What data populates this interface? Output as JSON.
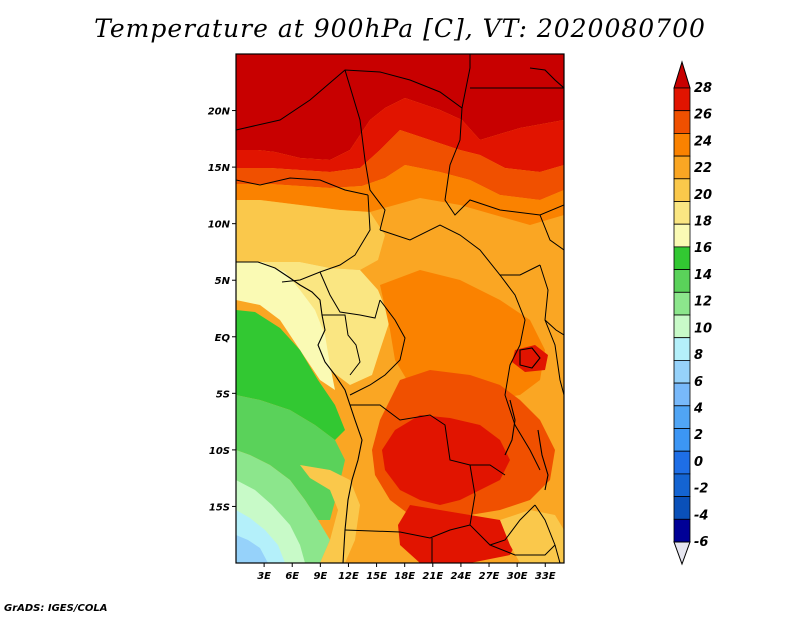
{
  "title": "Temperature at 900hPa [C], VT: 2020080700",
  "footer": "GrADS: IGES/COLA",
  "map": {
    "lon_range": [
      0,
      35
    ],
    "lat_range": [
      -20,
      25
    ],
    "lat_ticks": [
      {
        "label": "20N",
        "value": 20
      },
      {
        "label": "15N",
        "value": 15
      },
      {
        "label": "10N",
        "value": 10
      },
      {
        "label": "5N",
        "value": 5
      },
      {
        "label": "EQ",
        "value": 0
      },
      {
        "label": "5S",
        "value": -5
      },
      {
        "label": "10S",
        "value": -10
      },
      {
        "label": "15S",
        "value": -15
      }
    ],
    "lon_ticks": [
      {
        "label": "3E",
        "value": 3
      },
      {
        "label": "6E",
        "value": 6
      },
      {
        "label": "9E",
        "value": 9
      },
      {
        "label": "12E",
        "value": 12
      },
      {
        "label": "15E",
        "value": 15
      },
      {
        "label": "18E",
        "value": 18
      },
      {
        "label": "21E",
        "value": 21
      },
      {
        "label": "24E",
        "value": 24
      },
      {
        "label": "27E",
        "value": 27
      },
      {
        "label": "30E",
        "value": 30
      },
      {
        "label": "33E",
        "value": 33
      }
    ]
  },
  "colorbar": {
    "labels": [
      "28",
      "26",
      "24",
      "22",
      "20",
      "18",
      "16",
      "14",
      "12",
      "10",
      "8",
      "6",
      "4",
      "2",
      "0",
      "-2",
      "-4",
      "-6"
    ],
    "colors": [
      "#c80000",
      "#e11400",
      "#f05000",
      "#fa8200",
      "#faa623",
      "#fac84b",
      "#fae682",
      "#fafab4",
      "#32c832",
      "#5ad25a",
      "#8ce68c",
      "#c8fac8",
      "#b4f0fa",
      "#96d2fa",
      "#78b9fa",
      "#50a5f5",
      "#3c96f5",
      "#1e6ee6",
      "#1464d2",
      "#0a50b9",
      "#000096",
      "#e6e6f0"
    ]
  }
}
